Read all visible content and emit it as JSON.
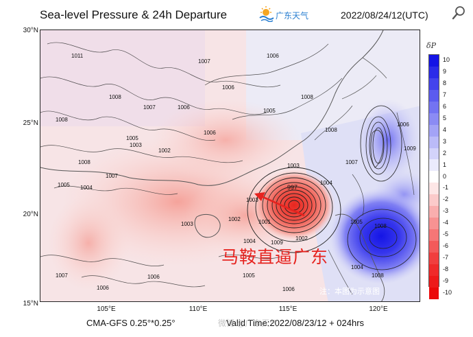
{
  "header": {
    "title": "Sea-level Pressure & 24h Departure",
    "brand": "广东天气",
    "valid_stamp": "2022/08/24/12(UTC)"
  },
  "footer": {
    "model": "CMA-GFS  0.25°*0.25°",
    "valid_time": "Valid Time:2022/08/23/12 + 024hrs",
    "watermark": "微博 @广东天气"
  },
  "annotation": {
    "headline": "马鞍直逼广东",
    "note": "注：本图为示意图"
  },
  "axes": {
    "lat_labels": [
      "30°N",
      "25°N",
      "20°N",
      "15°N"
    ],
    "lon_labels": [
      "105°E",
      "110°E",
      "115°E",
      "120°E"
    ]
  },
  "colorbar": {
    "title": "δP",
    "levels": [
      "10",
      "9",
      "8",
      "7",
      "6",
      "5",
      "4",
      "3",
      "2",
      "1",
      "0",
      "-1",
      "-2",
      "-3",
      "-4",
      "-5",
      "-6",
      "-7",
      "-8",
      "-9",
      "-10"
    ],
    "colors": [
      "#1414e6",
      "#2b2be9",
      "#4343ec",
      "#5b5bef",
      "#7373f2",
      "#8b8bf4",
      "#a3a3f6",
      "#bbbbf8",
      "#d3d3fa",
      "#ebebfc",
      "#ffffff",
      "#fde6e6",
      "#fbcaca",
      "#f9aeae",
      "#f79292",
      "#f57676",
      "#f35a5a",
      "#f13e3e",
      "#ef2a2a",
      "#ed1a1a",
      "#eb0a0a"
    ]
  },
  "isobars": {
    "labels": [
      "1011",
      "1008",
      "1006",
      "1007",
      "1006",
      "1007",
      "1008",
      "1005",
      "1006",
      "1008",
      "1008",
      "1005",
      "1006",
      "1008",
      "1007",
      "1003",
      "1002",
      "1006",
      "1005",
      "1004",
      "1007",
      "1009",
      "1003",
      "997",
      "1004",
      "1002",
      "1003",
      "1001",
      "1005",
      "1003",
      "1004",
      "1009",
      "1002",
      "1005",
      "1008",
      "1006",
      "1007",
      "1006",
      "1006",
      "1004",
      "1008"
    ],
    "center_value": "997"
  },
  "colors": {
    "warm_anomaly": "#f6b6b0",
    "cold_anomaly": "#2b2be9",
    "arrow": "#e6231f",
    "brand_blue": "#2a7fd1"
  }
}
